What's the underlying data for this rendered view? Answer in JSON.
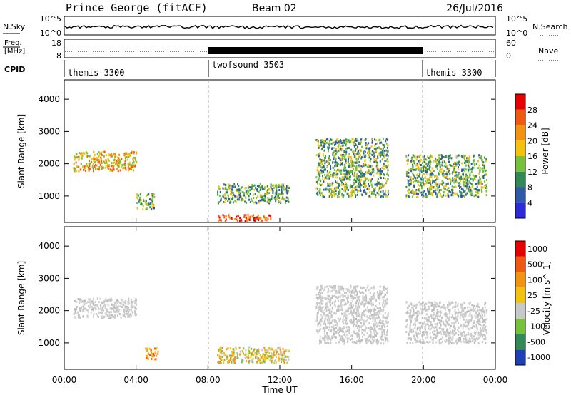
{
  "header": {
    "station": "Prince George (fitACF)",
    "beam": "Beam 02",
    "date": "26/Jul/2016"
  },
  "noise_panel": {
    "left_label": "N.Sky",
    "left_top_tick": "10^5",
    "left_bottom_tick": "10^0",
    "right_label": "N.Search",
    "right_top_tick": "10^5",
    "right_bottom_tick": "10^0"
  },
  "freq_panel": {
    "left_label_line1": "Freq.",
    "left_label_line2": "[MHz]",
    "left_top_tick": "18",
    "left_bottom_tick": "8",
    "right_label": "Nave",
    "right_top_tick": "60",
    "right_bottom_tick": "0"
  },
  "cpid": {
    "label": "CPID",
    "segments": [
      {
        "name": "themis 3300",
        "start_hour": 0,
        "end_hour": 8
      },
      {
        "name": "twofsound 3503",
        "start_hour": 8,
        "end_hour": 20
      },
      {
        "name": "themis 3300",
        "start_hour": 20,
        "end_hour": 24
      }
    ]
  },
  "chart_data": [
    {
      "type": "heatmap",
      "title": "",
      "xlabel": "",
      "ylabel": "Slant Range [km]",
      "xlim_hours": [
        0,
        24
      ],
      "ylim": [
        180,
        4600
      ],
      "yticks": [
        1000,
        2000,
        3000,
        4000
      ],
      "colorbar": {
        "label": "Power [dB]",
        "ticks": [
          "4",
          "8",
          "12",
          "16",
          "20",
          "24",
          "28"
        ],
        "colors": [
          "#2b2bd9",
          "#2e5aa8",
          "#2f8a55",
          "#76c23a",
          "#f4c20d",
          "#f29312",
          "#ef5a10",
          "#e60000"
        ]
      },
      "scatter_regions": [
        {
          "t": [
            0.5,
            4.0
          ],
          "r": [
            1800,
            2400
          ],
          "level": "moderate-high"
        },
        {
          "t": [
            4.0,
            5.0
          ],
          "r": [
            600,
            1100
          ],
          "level": "moderate"
        },
        {
          "t": [
            8.5,
            11.5
          ],
          "r": [
            250,
            450
          ],
          "level": "high"
        },
        {
          "t": [
            8.5,
            12.5
          ],
          "r": [
            800,
            1400
          ],
          "level": "moderate"
        },
        {
          "t": [
            14.0,
            18.0
          ],
          "r": [
            1000,
            2800
          ],
          "level": "moderate"
        },
        {
          "t": [
            19.0,
            23.5
          ],
          "r": [
            1000,
            2300
          ],
          "level": "moderate"
        }
      ]
    },
    {
      "type": "heatmap",
      "title": "",
      "xlabel": "Time UT",
      "ylabel": "Slant Range [km]",
      "xlim_hours": [
        0,
        24
      ],
      "ylim": [
        180,
        4600
      ],
      "yticks": [
        1000,
        2000,
        3000,
        4000
      ],
      "xticks": [
        "00:00",
        "04:00",
        "08:00",
        "12:00",
        "16:00",
        "20:00",
        "00:00"
      ],
      "colorbar": {
        "label": "Velocity [m s^-1]",
        "ticks": [
          "1000",
          "500",
          "100",
          "25",
          "-25",
          "-100",
          "-500",
          "-1000"
        ],
        "colors": [
          "#1f3fb5",
          "#2f8a55",
          "#76c23a",
          "#c8c8c8",
          "#f4c20d",
          "#f29312",
          "#ef5a10",
          "#e60000"
        ]
      },
      "scatter_regions": [
        {
          "t": [
            0.5,
            4.0
          ],
          "r": [
            1800,
            2400
          ],
          "level": "ground-scatter"
        },
        {
          "t": [
            4.5,
            5.2
          ],
          "r": [
            500,
            900
          ],
          "level": "negative"
        },
        {
          "t": [
            8.5,
            12.5
          ],
          "r": [
            400,
            900
          ],
          "level": "negative-small"
        },
        {
          "t": [
            14.0,
            18.0
          ],
          "r": [
            1000,
            2800
          ],
          "level": "ground-scatter"
        },
        {
          "t": [
            19.0,
            23.5
          ],
          "r": [
            1000,
            2300
          ],
          "level": "ground-scatter"
        }
      ]
    }
  ]
}
